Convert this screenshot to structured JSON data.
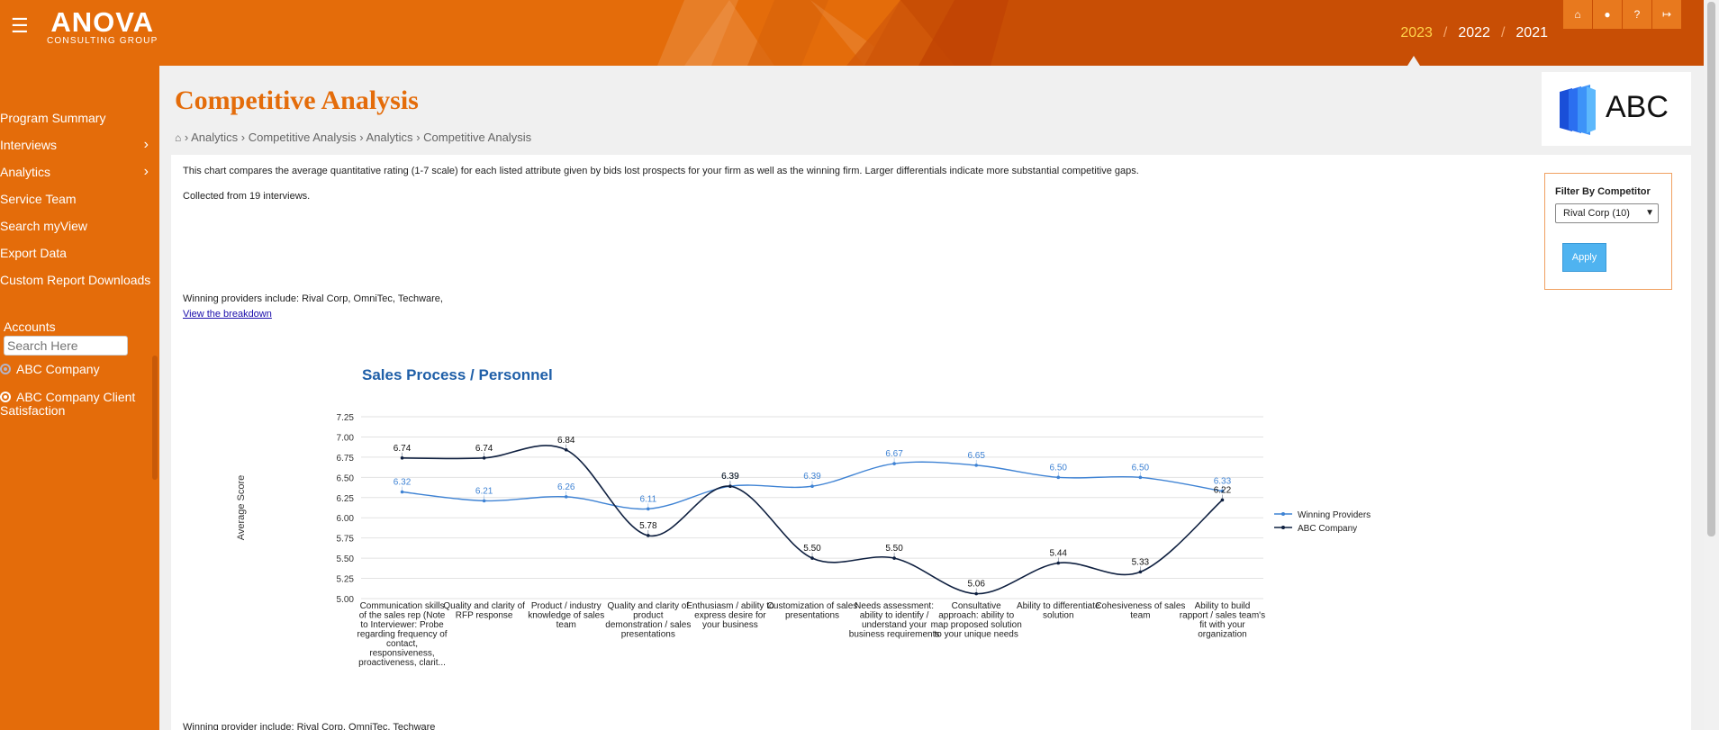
{
  "header": {
    "logo_main": "ANOVA",
    "logo_sub": "CONSULTING GROUP",
    "menu_icon": "hamburger-icon",
    "years": [
      "2023",
      "2022",
      "2021"
    ],
    "active_year": "2023",
    "icons": [
      "home-icon",
      "user-icon",
      "help-icon",
      "logout-icon"
    ],
    "accent": "#e46c0a"
  },
  "sidebar": {
    "items": [
      {
        "label": "Program Summary",
        "has_children": false
      },
      {
        "label": "Interviews",
        "has_children": true
      },
      {
        "label": "Analytics",
        "has_children": true
      },
      {
        "label": "Service Team",
        "has_children": false
      },
      {
        "label": "Search myView",
        "has_children": false
      },
      {
        "label": "Export Data",
        "has_children": false
      },
      {
        "label": "Custom Report Downloads",
        "has_children": false
      }
    ],
    "accounts_label": "Accounts",
    "search_placeholder": "Search Here",
    "accounts": [
      {
        "label": "ABC Company",
        "selected": true
      },
      {
        "label": "ABC Company Client Satisfaction",
        "selected": false
      }
    ]
  },
  "main": {
    "title": "Competitive Analysis",
    "breadcrumb": [
      "Analytics",
      "Competitive Analysis",
      "Analytics",
      "Competitive Analysis"
    ],
    "brand": "ABC",
    "description": "This chart compares the average quantitative rating (1-7 scale) for each listed attribute given by bids lost prospects for your firm as well as the winning firm. Larger differentials indicate more substantial competitive gaps.",
    "collected": "Collected from 19 interviews.",
    "winning_text": "Winning providers include: Rival Corp, OmniTec, Techware,",
    "breakdown_link": "View the breakdown",
    "bottom_cut_text": "Winning provider include: Rival Corp, OmniTec, Techware"
  },
  "filter": {
    "title": "Filter By Competitor",
    "selected": "Rival Corp (10)",
    "apply_label": "Apply"
  },
  "chart_data": {
    "type": "line",
    "title": "Sales Process / Personnel",
    "ylabel": "Average Score",
    "xlabel": "",
    "ylim": [
      5.0,
      7.25
    ],
    "yticks": [
      "5.00",
      "5.25",
      "5.50",
      "5.75",
      "6.00",
      "6.25",
      "6.50",
      "6.75",
      "7.00",
      "7.25"
    ],
    "grid": true,
    "legend_position": "right",
    "categories": [
      "Communication skills of the sales rep (Note to Interviewer: Probe regarding frequency of contact, responsiveness, proactiveness, clarit...",
      "Quality and clarity of RFP response",
      "Product / industry knowledge of sales team",
      "Quality and clarity of product demonstration / sales presentations",
      "Enthusiasm / ability to express desire for your business",
      "Customization of sales presentations",
      "Needs assessment: ability to identify / understand your business requirements",
      "Consultative approach: ability to map proposed solution to your unique needs",
      "Ability to differentiate solution",
      "Cohesiveness of sales team",
      "Ability to build rapport / sales team's fit with your organization"
    ],
    "category_lines": [
      [
        "Communication skills",
        "of the sales rep (Note",
        "to Interviewer: Probe",
        "regarding frequency of",
        "contact,",
        "responsiveness,",
        "proactiveness, clarit..."
      ],
      [
        "Quality and clarity of",
        "RFP response"
      ],
      [
        "Product / industry",
        "knowledge of sales",
        "team"
      ],
      [
        "Quality and clarity of",
        "product",
        "demonstration / sales",
        "presentations"
      ],
      [
        "Enthusiasm / ability to",
        "express desire for",
        "your business"
      ],
      [
        "Customization of sales",
        "presentations"
      ],
      [
        "Needs assessment:",
        "ability to identify /",
        "understand your",
        "business requirements"
      ],
      [
        "Consultative",
        "approach: ability to",
        "map proposed solution",
        "to your unique needs"
      ],
      [
        "Ability to differentiate",
        "solution"
      ],
      [
        "Cohesiveness of sales",
        "team"
      ],
      [
        "Ability to build",
        "rapport / sales team's",
        "fit with your",
        "organization"
      ]
    ],
    "series": [
      {
        "name": "Winning Providers",
        "color": "#3f83d4",
        "values": [
          6.32,
          6.21,
          6.26,
          6.11,
          6.39,
          6.39,
          6.67,
          6.65,
          6.5,
          6.5,
          6.33
        ],
        "labels": [
          "6.32",
          "6.21",
          "6.26",
          "6.11",
          "6.39",
          "6.39",
          "6.67",
          "6.65",
          "6.50",
          "6.50",
          "6.33"
        ]
      },
      {
        "name": "ABC Company",
        "color": "#0f2040",
        "values": [
          6.74,
          6.74,
          6.84,
          5.78,
          6.39,
          5.5,
          5.5,
          5.06,
          5.44,
          5.33,
          6.22
        ],
        "labels": [
          "6.74",
          "6.74",
          "6.84",
          "5.78",
          "6.39",
          "5.50",
          "5.50",
          "5.06",
          "5.44",
          "5.33",
          "6.22"
        ]
      }
    ]
  }
}
